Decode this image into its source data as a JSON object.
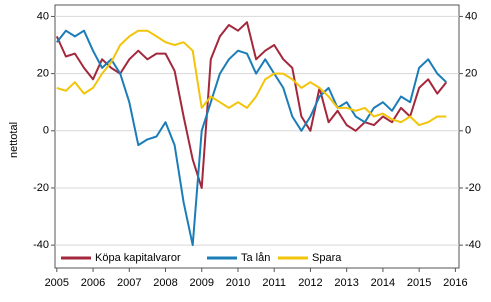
{
  "chart_data": {
    "type": "line",
    "y_label": "nettotal",
    "x": [
      2005,
      2005.25,
      2005.5,
      2005.75,
      2006,
      2006.25,
      2006.5,
      2006.75,
      2007,
      2007.25,
      2007.5,
      2007.75,
      2008,
      2008.25,
      2008.5,
      2008.75,
      2009,
      2009.25,
      2009.5,
      2009.75,
      2010,
      2010.25,
      2010.5,
      2010.75,
      2011,
      2011.25,
      2011.5,
      2011.75,
      2012,
      2012.25,
      2012.5,
      2012.75,
      2013,
      2013.25,
      2013.5,
      2013.75,
      2014,
      2014.25,
      2014.5,
      2014.75,
      2015,
      2015.25,
      2015.5,
      2015.75
    ],
    "series": [
      {
        "name": "Köpa kapitalvaror",
        "color": "#a3283c",
        "values": [
          33,
          26,
          27,
          22,
          18,
          25,
          22,
          20,
          25,
          28,
          25,
          27,
          27,
          21,
          5,
          -10,
          -20,
          25,
          33,
          37,
          35,
          38,
          25,
          28,
          30,
          25,
          22,
          5,
          0,
          15,
          3,
          7,
          2,
          0,
          3,
          2,
          5,
          3,
          8,
          5,
          15,
          18,
          13,
          17
        ]
      },
      {
        "name": "Ta lån",
        "color": "#1b7db8",
        "values": [
          31,
          35,
          33,
          35,
          28,
          22,
          25,
          20,
          10,
          -5,
          -3,
          -2,
          3,
          -5,
          -25,
          -40,
          0,
          10,
          20,
          25,
          28,
          27,
          20,
          25,
          20,
          15,
          5,
          0,
          5,
          12,
          15,
          8,
          10,
          5,
          3,
          8,
          10,
          7,
          12,
          10,
          22,
          25,
          20,
          17
        ]
      },
      {
        "name": "Spara",
        "color": "#f2c40a",
        "values": [
          15,
          14,
          17,
          13,
          15,
          20,
          24,
          30,
          33,
          35,
          35,
          33,
          31,
          30,
          31,
          28,
          8,
          12,
          10,
          8,
          10,
          8,
          12,
          18,
          20,
          20,
          18,
          15,
          17,
          15,
          12,
          8,
          8,
          7,
          8,
          5,
          6,
          4,
          3,
          5,
          2,
          3,
          5,
          5
        ]
      }
    ],
    "xlim": [
      2004.95,
      2016.1
    ],
    "xticks": [
      2005,
      2006,
      2007,
      2008,
      2009,
      2010,
      2011,
      2012,
      2013,
      2014,
      2015,
      2016
    ],
    "ylim": [
      -48,
      44
    ],
    "yticks": [
      -40,
      -20,
      0,
      20,
      40
    ],
    "y2lim": [
      -48,
      44
    ],
    "y2ticks": [
      -40,
      -20,
      0,
      20,
      40
    ],
    "grid": true,
    "legend": "bottom-left"
  }
}
